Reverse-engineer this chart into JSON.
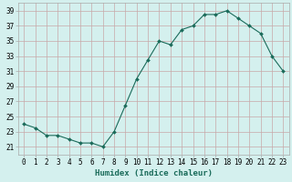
{
  "x": [
    0,
    1,
    2,
    3,
    4,
    5,
    6,
    7,
    8,
    9,
    10,
    11,
    12,
    13,
    14,
    15,
    16,
    17,
    18,
    19,
    20,
    21,
    22,
    23
  ],
  "y": [
    24.0,
    23.5,
    22.5,
    22.5,
    22.0,
    21.5,
    21.5,
    21.0,
    23.0,
    26.5,
    30.0,
    32.5,
    35.0,
    34.5,
    36.5,
    37.0,
    38.5,
    38.5,
    39.0,
    38.0,
    37.0,
    36.0,
    33.0,
    31.0
  ],
  "line_color": "#1a6b5a",
  "marker": "D",
  "marker_size": 2.0,
  "bg_color": "#d4f0ee",
  "grid_color_major": "#c8a8a8",
  "grid_color_minor": "#dbbcbc",
  "xlabel": "Humidex (Indice chaleur)",
  "ylim": [
    20,
    40
  ],
  "yticks": [
    21,
    23,
    25,
    27,
    29,
    31,
    33,
    35,
    37,
    39
  ],
  "xticks": [
    0,
    1,
    2,
    3,
    4,
    5,
    6,
    7,
    8,
    9,
    10,
    11,
    12,
    13,
    14,
    15,
    16,
    17,
    18,
    19,
    20,
    21,
    22,
    23
  ],
  "tick_fontsize": 5.5,
  "xlabel_fontsize": 6.5,
  "spine_color": "#aaaaaa"
}
